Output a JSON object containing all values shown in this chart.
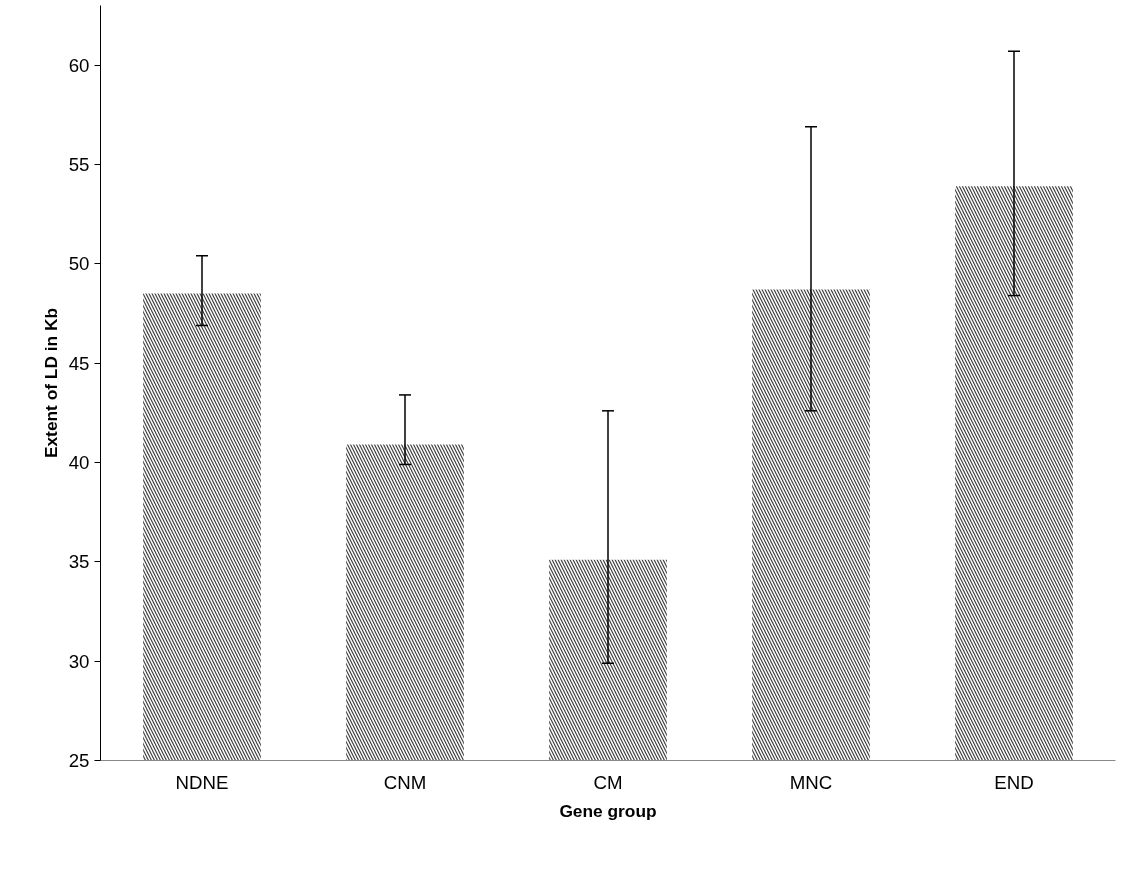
{
  "chart_data": {
    "type": "bar",
    "xlabel": "Gene group",
    "ylabel": "Extent of LD in Kb",
    "categories": [
      "NDNE",
      "CNM",
      "CM",
      "MNC",
      "END"
    ],
    "values": [
      48.5,
      40.9,
      35.1,
      48.7,
      53.9
    ],
    "errors": [
      [
        46.9,
        50.4
      ],
      [
        39.9,
        43.4
      ],
      [
        29.9,
        42.6
      ],
      [
        42.6,
        56.9
      ],
      [
        48.4,
        60.7
      ]
    ],
    "color": "#404040",
    "ylim": [
      25,
      63
    ],
    "yticks": [
      25,
      30,
      35,
      40,
      45,
      50,
      55,
      60
    ],
    "grid": false
  }
}
